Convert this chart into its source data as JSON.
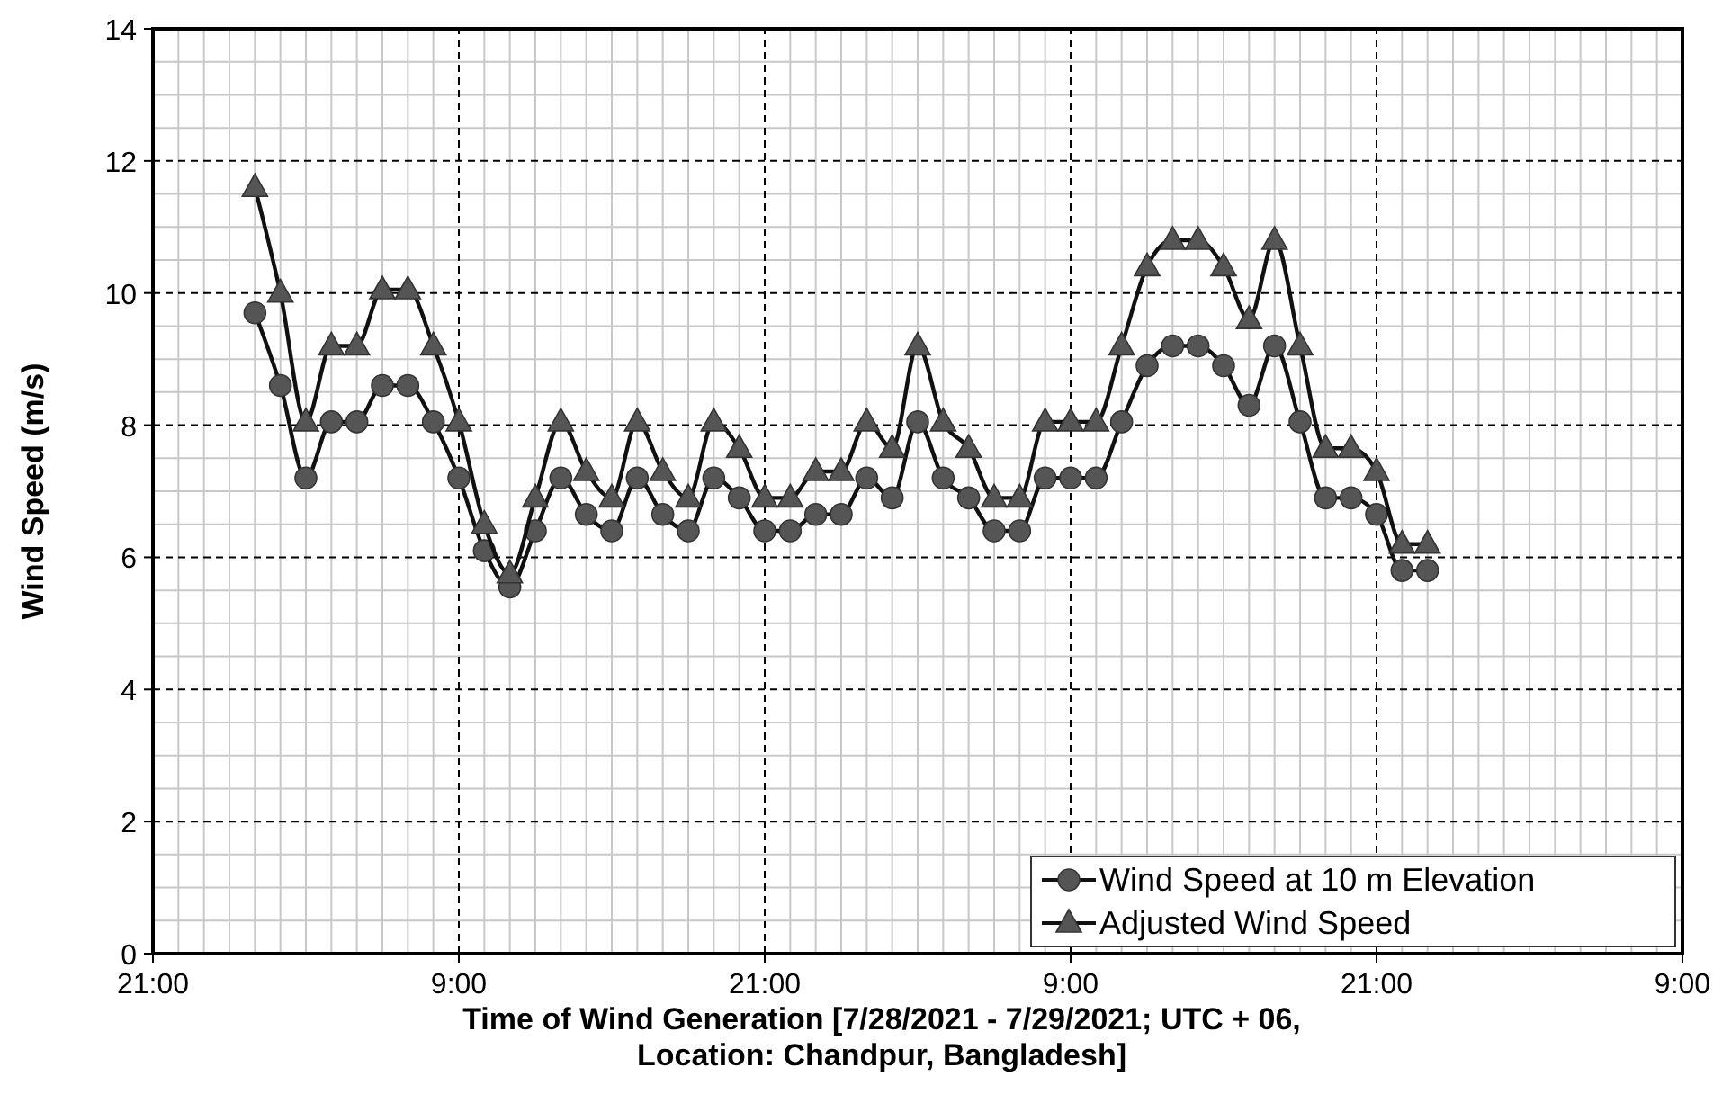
{
  "chart_data": {
    "type": "line",
    "xlabel": "Time of Wind Generation  [7/28/2021 - 7/29/2021; UTC + 06,\nLocation: Chandpur, Bangladesh]",
    "ylabel": "Wind Speed (m/s)",
    "x": [
      "2021-07-28T01:00",
      "2021-07-28T02:00",
      "2021-07-28T03:00",
      "2021-07-28T04:00",
      "2021-07-28T05:00",
      "2021-07-28T06:00",
      "2021-07-28T07:00",
      "2021-07-28T08:00",
      "2021-07-28T09:00",
      "2021-07-28T10:00",
      "2021-07-28T11:00",
      "2021-07-28T12:00",
      "2021-07-28T13:00",
      "2021-07-28T14:00",
      "2021-07-28T15:00",
      "2021-07-28T16:00",
      "2021-07-28T17:00",
      "2021-07-28T18:00",
      "2021-07-28T19:00",
      "2021-07-28T20:00",
      "2021-07-28T21:00",
      "2021-07-28T22:00",
      "2021-07-28T23:00",
      "2021-07-29T00:00",
      "2021-07-29T01:00",
      "2021-07-29T02:00",
      "2021-07-29T03:00",
      "2021-07-29T04:00",
      "2021-07-29T05:00",
      "2021-07-29T06:00",
      "2021-07-29T07:00",
      "2021-07-29T08:00",
      "2021-07-29T09:00",
      "2021-07-29T10:00",
      "2021-07-29T11:00",
      "2021-07-29T12:00",
      "2021-07-29T13:00",
      "2021-07-29T14:00",
      "2021-07-29T15:00",
      "2021-07-29T16:00",
      "2021-07-29T17:00",
      "2021-07-29T18:00",
      "2021-07-29T19:00",
      "2021-07-29T20:00",
      "2021-07-29T21:00",
      "2021-07-29T22:00",
      "2021-07-29T23:00"
    ],
    "series": [
      {
        "name": "Wind Speed at 10 m Elevation",
        "color": "#555555",
        "marker": "circle",
        "values": [
          9.7,
          8.6,
          7.2,
          8.05,
          8.05,
          8.6,
          8.6,
          8.05,
          7.2,
          6.1,
          5.55,
          6.4,
          7.2,
          6.65,
          6.4,
          7.2,
          6.65,
          6.4,
          7.2,
          6.9,
          6.4,
          6.4,
          6.65,
          6.65,
          7.2,
          6.9,
          8.05,
          7.2,
          6.9,
          6.4,
          6.4,
          7.2,
          7.2,
          7.2,
          8.05,
          8.9,
          9.2,
          9.2,
          8.9,
          8.3,
          9.2,
          8.05,
          6.9,
          6.9,
          6.65,
          5.8,
          5.8
        ]
      },
      {
        "name": "Adjusted Wind Speed",
        "color": "#555555",
        "marker": "triangle",
        "values": [
          11.6,
          10.0,
          8.05,
          9.2,
          9.2,
          10.05,
          10.05,
          9.2,
          8.05,
          6.5,
          5.75,
          6.9,
          8.05,
          7.3,
          6.9,
          8.05,
          7.3,
          6.9,
          8.05,
          7.65,
          6.9,
          6.9,
          7.3,
          7.3,
          8.05,
          7.65,
          9.2,
          8.05,
          7.65,
          6.9,
          6.9,
          8.05,
          8.05,
          8.05,
          9.2,
          10.4,
          10.8,
          10.8,
          10.4,
          9.6,
          10.8,
          9.2,
          7.65,
          7.65,
          7.3,
          6.2,
          6.2
        ]
      }
    ],
    "xlim": [
      "2021-07-27T21:00",
      "2021-07-30T09:00"
    ],
    "xticks": [
      {
        "value": "2021-07-27T21:00",
        "label": "21:00"
      },
      {
        "value": "2021-07-28T09:00",
        "label": "9:00"
      },
      {
        "value": "2021-07-28T21:00",
        "label": "21:00"
      },
      {
        "value": "2021-07-29T09:00",
        "label": "9:00"
      },
      {
        "value": "2021-07-29T21:00",
        "label": "21:00"
      },
      {
        "value": "2021-07-30T09:00",
        "label": "9:00"
      }
    ],
    "ylim": [
      0,
      14
    ],
    "yticks": [
      0,
      2,
      4,
      6,
      8,
      10,
      12,
      14
    ],
    "grid": true,
    "legend": "bottom right"
  }
}
